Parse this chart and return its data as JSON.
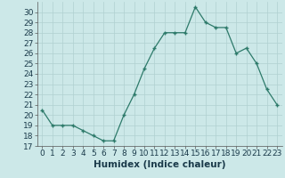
{
  "x": [
    0,
    1,
    2,
    3,
    4,
    5,
    6,
    7,
    8,
    9,
    10,
    11,
    12,
    13,
    14,
    15,
    16,
    17,
    18,
    19,
    20,
    21,
    22,
    23
  ],
  "y": [
    20.5,
    19.0,
    19.0,
    19.0,
    18.5,
    18.0,
    17.5,
    17.5,
    20.0,
    22.0,
    24.5,
    26.5,
    28.0,
    28.0,
    28.0,
    30.5,
    29.0,
    28.5,
    28.5,
    26.0,
    26.5,
    25.0,
    22.5,
    21.0
  ],
  "ylim": [
    17,
    31
  ],
  "yticks": [
    17,
    18,
    19,
    20,
    21,
    22,
    23,
    24,
    25,
    26,
    27,
    28,
    29,
    30
  ],
  "xticks": [
    0,
    1,
    2,
    3,
    4,
    5,
    6,
    7,
    8,
    9,
    10,
    11,
    12,
    13,
    14,
    15,
    16,
    17,
    18,
    19,
    20,
    21,
    22,
    23
  ],
  "xlabel": "Humidex (Indice chaleur)",
  "line_color": "#2d7a6a",
  "marker_color": "#2d7a6a",
  "bg_color": "#cce8e8",
  "grid_color": "#b0d0d0",
  "tick_fontsize": 6.5,
  "xlabel_fontsize": 7.5
}
